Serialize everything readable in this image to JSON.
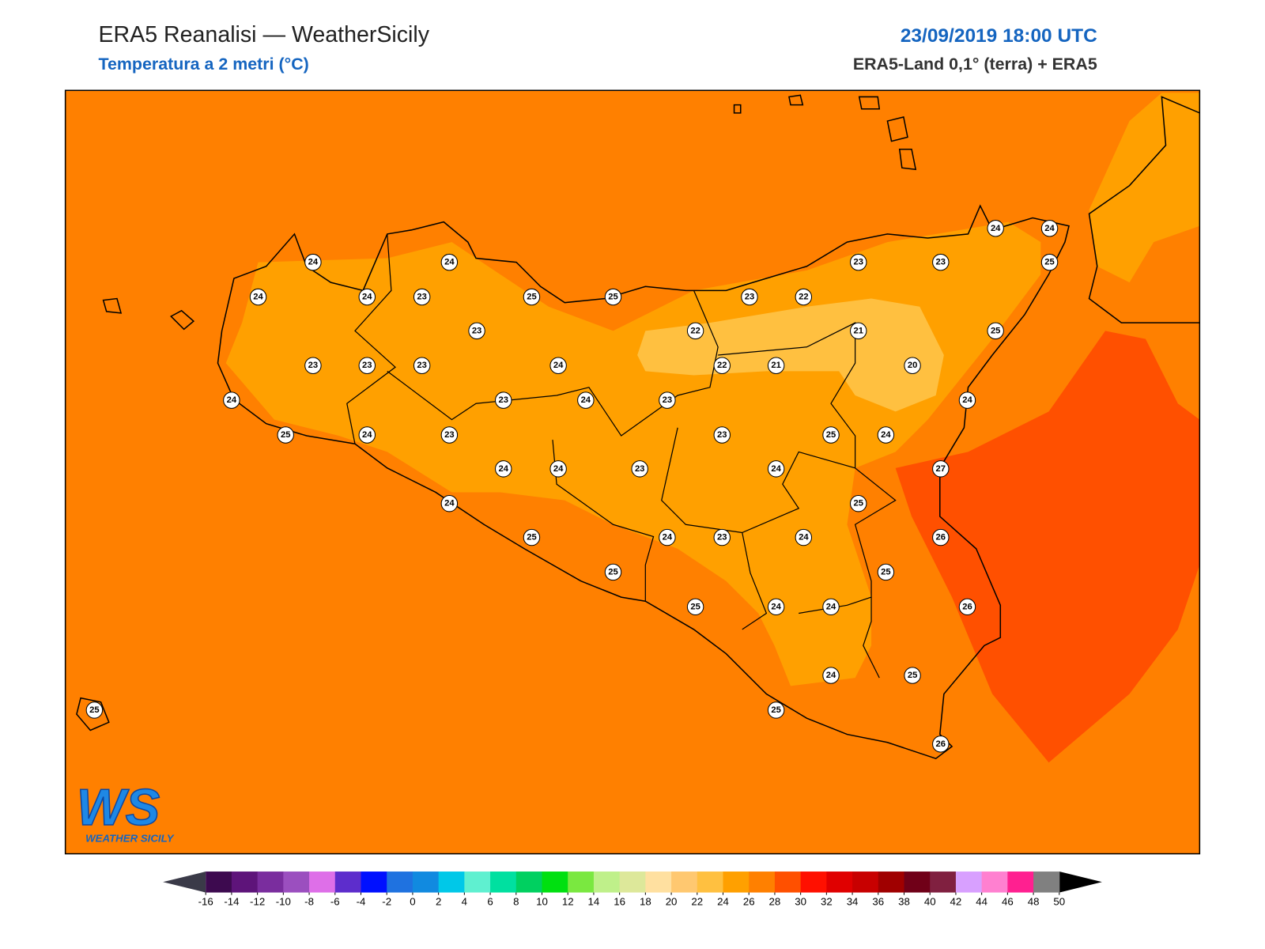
{
  "header": {
    "title": "ERA5 Reanalisi — WeatherSicily",
    "subtitle": "Temperatura a 2 metri (°C)",
    "datetime": "23/09/2019 18:00 UTC",
    "source": "ERA5-Land 0,1° (terra) + ERA5"
  },
  "logo": {
    "mark": "WS",
    "text": "WEATHER SICILY"
  },
  "stations": {
    "values": [
      24,
      24,
      24,
      24,
      23,
      25,
      25,
      23,
      23,
      23,
      23,
      24,
      24,
      23,
      24,
      23,
      25,
      24,
      23,
      24,
      24,
      23,
      24,
      25,
      25,
      24,
      23,
      25,
      23,
      22,
      22,
      22,
      21,
      21,
      20,
      23,
      23,
      24,
      24,
      25,
      25,
      24,
      23,
      25,
      24,
      27,
      24,
      25,
      24,
      26,
      25,
      26,
      24,
      24,
      24,
      25,
      25,
      26,
      25
    ]
  },
  "colorbar": {
    "ticks": [
      -16,
      -14,
      -12,
      -10,
      -8,
      -6,
      -4,
      -2,
      0,
      2,
      4,
      6,
      8,
      10,
      12,
      14,
      16,
      18,
      20,
      22,
      24,
      26,
      28,
      30,
      32,
      34,
      36,
      38,
      40,
      42,
      44,
      46,
      48,
      50
    ],
    "colors": [
      "#3d0a4f",
      "#5e147a",
      "#7a2d9e",
      "#9b4fbf",
      "#de6fe8",
      "#5d2dcc",
      "#0010ff",
      "#1f72e0",
      "#118ae0",
      "#00c8e8",
      "#5ff0d0",
      "#00e0a0",
      "#00d060",
      "#00e010",
      "#7ae840",
      "#bff08a",
      "#dde89a",
      "#ffe0a0",
      "#ffc870",
      "#ffc040",
      "#ffa000",
      "#ff8000",
      "#ff5000",
      "#ff1000",
      "#e00000",
      "#c80000",
      "#a00000",
      "#700018",
      "#802040",
      "#d8a0ff",
      "#ff80d0",
      "#ff2090",
      "#808080"
    ],
    "under": "#3a3a48",
    "over": "#000000"
  }
}
